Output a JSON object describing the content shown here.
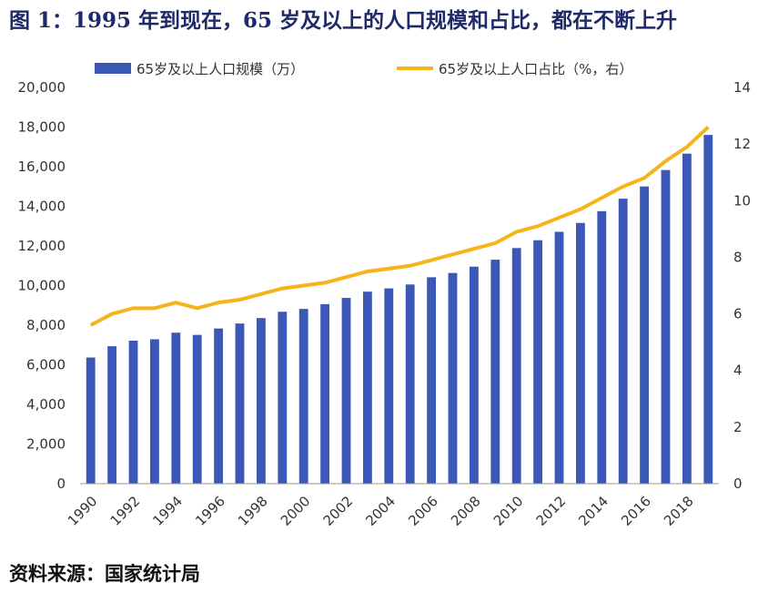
{
  "figure": {
    "title": "图 1：1995 年到现在，65 岁及以上的人口规模和占比，都在不断上升",
    "source": "资料来源：国家统计局"
  },
  "colors": {
    "bar": "#3b57b8",
    "line": "#f4b41a",
    "axis": "#999999"
  },
  "chart_data": {
    "type": "bar",
    "title": "图 1：1995 年到现在，65 岁及以上的人口规模和占比，都在不断上升",
    "x": [
      1990,
      1991,
      1992,
      1993,
      1994,
      1995,
      1996,
      1997,
      1998,
      1999,
      2000,
      2001,
      2002,
      2003,
      2004,
      2005,
      2006,
      2007,
      2008,
      2009,
      2010,
      2011,
      2012,
      2013,
      2014,
      2015,
      2016,
      2017,
      2018,
      2019
    ],
    "x_tick_labels": [
      "1990",
      "1992",
      "1994",
      "1996",
      "1998",
      "2000",
      "2002",
      "2004",
      "2006",
      "2008",
      "2010",
      "2012",
      "2014",
      "2016",
      "2018"
    ],
    "series": [
      {
        "name": "65岁及以上人口规模（万）",
        "type": "bar",
        "axis": "left",
        "values": [
          6368,
          6938,
          7218,
          7289,
          7622,
          7510,
          7833,
          8085,
          8359,
          8679,
          8821,
          9062,
          9377,
          9692,
          9857,
          10055,
          10419,
          10636,
          10956,
          11307,
          11894,
          12288,
          12714,
          13161,
          13755,
          14386,
          15003,
          15831,
          16658,
          17603
        ]
      },
      {
        "name": "65岁及以上人口占比（%，右）",
        "type": "line",
        "axis": "right",
        "values": [
          5.6,
          6.0,
          6.2,
          6.2,
          6.4,
          6.2,
          6.4,
          6.5,
          6.7,
          6.9,
          7.0,
          7.1,
          7.3,
          7.5,
          7.6,
          7.7,
          7.9,
          8.1,
          8.3,
          8.5,
          8.9,
          9.1,
          9.4,
          9.7,
          10.1,
          10.5,
          10.8,
          11.4,
          11.9,
          12.6
        ]
      }
    ],
    "ylim_left": [
      0,
      20000
    ],
    "ylim_right": [
      0,
      14
    ],
    "y_left_ticks": [
      "0",
      "2,000",
      "4,000",
      "6,000",
      "8,000",
      "10,000",
      "12,000",
      "14,000",
      "16,000",
      "18,000",
      "20,000"
    ],
    "y_right_ticks": [
      "0",
      "2",
      "4",
      "6",
      "8",
      "10",
      "12",
      "14"
    ],
    "legend_position": "top"
  }
}
